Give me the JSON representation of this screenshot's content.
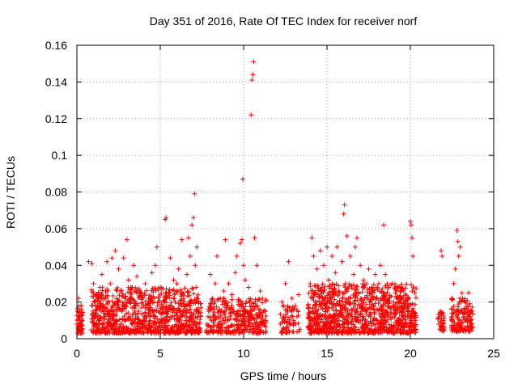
{
  "chart_data": {
    "type": "scatter",
    "title": "Day 351 of 2016, Rate Of TEC Index for receiver norf",
    "xlabel": "GPS time / hours",
    "ylabel": "ROTI / TECUs",
    "xlim": [
      0,
      25
    ],
    "ylim": [
      0,
      0.16
    ],
    "x_ticks": [
      0,
      5,
      10,
      15,
      20,
      25
    ],
    "y_ticks": [
      0,
      0.02,
      0.04,
      0.06,
      0.08,
      0.1,
      0.12,
      0.14,
      0.16
    ],
    "x_tick_labels": [
      "0",
      "5",
      "10",
      "15",
      "20",
      "25"
    ],
    "y_tick_labels": [
      "0",
      "0.02",
      "0.04",
      "0.06",
      "0.08",
      "0.1",
      "0.12",
      "0.14",
      "0.16"
    ],
    "grid": true,
    "marker": "+",
    "color": "#ff0000",
    "series": [
      {
        "name": "ROTI",
        "points": [
          [
            0.0,
            0.008
          ],
          [
            0.05,
            0.015
          ],
          [
            0.1,
            0.022
          ],
          [
            0.15,
            0.012
          ],
          [
            0.2,
            0.005
          ],
          [
            0.25,
            0.018
          ],
          [
            0.3,
            0.01
          ],
          [
            0.7,
            0.042
          ],
          [
            0.9,
            0.041
          ],
          [
            1.0,
            0.03
          ],
          [
            1.0,
            0.012
          ],
          [
            1.05,
            0.02
          ],
          [
            1.1,
            0.008
          ],
          [
            1.2,
            0.016
          ],
          [
            1.3,
            0.025
          ],
          [
            1.4,
            0.01
          ],
          [
            1.5,
            0.035
          ],
          [
            1.6,
            0.014
          ],
          [
            1.7,
            0.022
          ],
          [
            1.8,
            0.042
          ],
          [
            1.9,
            0.012
          ],
          [
            2.0,
            0.03
          ],
          [
            2.1,
            0.044
          ],
          [
            2.2,
            0.018
          ],
          [
            2.3,
            0.048
          ],
          [
            2.4,
            0.01
          ],
          [
            2.5,
            0.038
          ],
          [
            2.6,
            0.026
          ],
          [
            2.7,
            0.015
          ],
          [
            2.8,
            0.044
          ],
          [
            2.9,
            0.022
          ],
          [
            3.0,
            0.054
          ],
          [
            3.1,
            0.032
          ],
          [
            3.2,
            0.012
          ],
          [
            3.3,
            0.028
          ],
          [
            3.4,
            0.04
          ],
          [
            3.5,
            0.02
          ],
          [
            3.6,
            0.034
          ],
          [
            3.7,
            0.015
          ],
          [
            3.8,
            0.025
          ],
          [
            3.9,
            0.008
          ],
          [
            4.0,
            0.018
          ],
          [
            4.1,
            0.03
          ],
          [
            4.2,
            0.005
          ],
          [
            4.3,
            0.022
          ],
          [
            4.4,
            0.012
          ],
          [
            4.5,
            0.036
          ],
          [
            4.6,
            0.02
          ],
          [
            4.7,
            0.04
          ],
          [
            4.8,
            0.05
          ],
          [
            4.9,
            0.015
          ],
          [
            5.0,
            0.028
          ],
          [
            5.1,
            0.01
          ],
          [
            5.2,
            0.02
          ],
          [
            5.3,
            0.065
          ],
          [
            5.35,
            0.066
          ],
          [
            5.5,
            0.025
          ],
          [
            5.6,
            0.044
          ],
          [
            5.7,
            0.012
          ],
          [
            5.8,
            0.032
          ],
          [
            5.9,
            0.02
          ],
          [
            6.0,
            0.03
          ],
          [
            6.1,
            0.038
          ],
          [
            6.2,
            0.015
          ],
          [
            6.3,
            0.054
          ],
          [
            6.4,
            0.025
          ],
          [
            6.5,
            0.012
          ],
          [
            6.6,
            0.035
          ],
          [
            6.7,
            0.055
          ],
          [
            6.8,
            0.045
          ],
          [
            6.9,
            0.062
          ],
          [
            7.0,
            0.066
          ],
          [
            7.05,
            0.079
          ],
          [
            7.1,
            0.04
          ],
          [
            7.15,
            0.028
          ],
          [
            7.2,
            0.05
          ],
          [
            7.3,
            0.02
          ],
          [
            7.4,
            0.012
          ],
          [
            7.8,
            0.008
          ],
          [
            7.9,
            0.015
          ],
          [
            8.0,
            0.035
          ],
          [
            8.1,
            0.02
          ],
          [
            8.2,
            0.01
          ],
          [
            8.3,
            0.03
          ],
          [
            8.4,
            0.045
          ],
          [
            8.5,
            0.012
          ],
          [
            8.6,
            0.022
          ],
          [
            8.7,
            0.008
          ],
          [
            8.8,
            0.026
          ],
          [
            8.9,
            0.054
          ],
          [
            9.0,
            0.018
          ],
          [
            9.1,
            0.03
          ],
          [
            9.2,
            0.012
          ],
          [
            9.3,
            0.024
          ],
          [
            9.4,
            0.015
          ],
          [
            9.5,
            0.036
          ],
          [
            9.6,
            0.045
          ],
          [
            9.7,
            0.02
          ],
          [
            9.8,
            0.052
          ],
          [
            9.9,
            0.054
          ],
          [
            9.95,
            0.087
          ],
          [
            10.0,
            0.04
          ],
          [
            10.1,
            0.032
          ],
          [
            10.2,
            0.015
          ],
          [
            10.3,
            0.028
          ],
          [
            10.45,
            0.122
          ],
          [
            10.5,
            0.141
          ],
          [
            10.55,
            0.144
          ],
          [
            10.6,
            0.151
          ],
          [
            10.65,
            0.055
          ],
          [
            10.7,
            0.02
          ],
          [
            10.8,
            0.04
          ],
          [
            10.9,
            0.012
          ],
          [
            11.0,
            0.026
          ],
          [
            11.1,
            0.008
          ],
          [
            11.2,
            0.015
          ],
          [
            11.3,
            0.01
          ],
          [
            12.2,
            0.008
          ],
          [
            12.3,
            0.02
          ],
          [
            12.4,
            0.012
          ],
          [
            12.5,
            0.03
          ],
          [
            12.6,
            0.016
          ],
          [
            12.7,
            0.042
          ],
          [
            12.8,
            0.008
          ],
          [
            12.9,
            0.022
          ],
          [
            13.0,
            0.01
          ],
          [
            13.1,
            0.018
          ],
          [
            13.2,
            0.012
          ],
          [
            13.3,
            0.024
          ],
          [
            13.9,
            0.014
          ],
          [
            14.0,
            0.03
          ],
          [
            14.1,
            0.055
          ],
          [
            14.2,
            0.045
          ],
          [
            14.3,
            0.02
          ],
          [
            14.4,
            0.038
          ],
          [
            14.5,
            0.012
          ],
          [
            14.6,
            0.048
          ],
          [
            14.7,
            0.028
          ],
          [
            14.8,
            0.04
          ],
          [
            14.9,
            0.018
          ],
          [
            15.0,
            0.05
          ],
          [
            15.1,
            0.032
          ],
          [
            15.2,
            0.022
          ],
          [
            15.3,
            0.045
          ],
          [
            15.4,
            0.012
          ],
          [
            15.5,
            0.036
          ],
          [
            15.6,
            0.05
          ],
          [
            15.7,
            0.026
          ],
          [
            15.8,
            0.015
          ],
          [
            15.9,
            0.042
          ],
          [
            16.0,
            0.068
          ],
          [
            16.05,
            0.073
          ],
          [
            16.1,
            0.03
          ],
          [
            16.2,
            0.056
          ],
          [
            16.3,
            0.02
          ],
          [
            16.4,
            0.045
          ],
          [
            16.5,
            0.012
          ],
          [
            16.6,
            0.035
          ],
          [
            16.7,
            0.05
          ],
          [
            16.8,
            0.055
          ],
          [
            16.9,
            0.025
          ],
          [
            17.0,
            0.04
          ],
          [
            17.1,
            0.015
          ],
          [
            17.2,
            0.032
          ],
          [
            17.3,
            0.008
          ],
          [
            17.4,
            0.022
          ],
          [
            17.5,
            0.038
          ],
          [
            17.6,
            0.012
          ],
          [
            17.7,
            0.028
          ],
          [
            17.8,
            0.018
          ],
          [
            17.9,
            0.035
          ],
          [
            18.0,
            0.01
          ],
          [
            18.1,
            0.03
          ],
          [
            18.2,
            0.04
          ],
          [
            18.3,
            0.015
          ],
          [
            18.4,
            0.062
          ],
          [
            18.5,
            0.035
          ],
          [
            18.6,
            0.02
          ],
          [
            18.7,
            0.028
          ],
          [
            18.8,
            0.012
          ],
          [
            18.9,
            0.03
          ],
          [
            19.0,
            0.018
          ],
          [
            19.1,
            0.025
          ],
          [
            19.2,
            0.01
          ],
          [
            19.3,
            0.02
          ],
          [
            19.4,
            0.008
          ],
          [
            19.5,
            0.015
          ],
          [
            19.6,
            0.012
          ],
          [
            19.7,
            0.02
          ],
          [
            19.8,
            0.008
          ],
          [
            20.0,
            0.064
          ],
          [
            20.05,
            0.062
          ],
          [
            20.1,
            0.055
          ],
          [
            20.15,
            0.045
          ],
          [
            20.2,
            0.015
          ],
          [
            20.25,
            0.005
          ],
          [
            20.3,
            0.01
          ],
          [
            21.7,
            0.008
          ],
          [
            21.8,
            0.015
          ],
          [
            21.85,
            0.048
          ],
          [
            21.9,
            0.045
          ],
          [
            22.0,
            0.01
          ],
          [
            22.5,
            0.012
          ],
          [
            22.6,
            0.03
          ],
          [
            22.7,
            0.038
          ],
          [
            22.8,
            0.059
          ],
          [
            22.85,
            0.053
          ],
          [
            22.9,
            0.045
          ],
          [
            23.0,
            0.05
          ],
          [
            23.1,
            0.025
          ],
          [
            23.2,
            0.012
          ],
          [
            23.3,
            0.02
          ],
          [
            23.4,
            0.01
          ],
          [
            23.5,
            0.025
          ],
          [
            23.6,
            0.015
          ],
          [
            23.7,
            0.008
          ]
        ]
      }
    ],
    "dense_clusters": [
      {
        "x_range": [
          0.0,
          0.35
        ],
        "y_range": [
          0.003,
          0.02
        ],
        "count": 50
      },
      {
        "x_range": [
          0.85,
          7.45
        ],
        "y_range": [
          0.003,
          0.028
        ],
        "count": 900
      },
      {
        "x_range": [
          7.75,
          11.35
        ],
        "y_range": [
          0.003,
          0.022
        ],
        "count": 350
      },
      {
        "x_range": [
          12.2,
          13.4
        ],
        "y_range": [
          0.003,
          0.018
        ],
        "count": 60
      },
      {
        "x_range": [
          13.85,
          20.35
        ],
        "y_range": [
          0.003,
          0.03
        ],
        "count": 1000
      },
      {
        "x_range": [
          21.65,
          22.05
        ],
        "y_range": [
          0.004,
          0.015
        ],
        "count": 30
      },
      {
        "x_range": [
          22.45,
          23.75
        ],
        "y_range": [
          0.004,
          0.022
        ],
        "count": 140
      }
    ]
  }
}
